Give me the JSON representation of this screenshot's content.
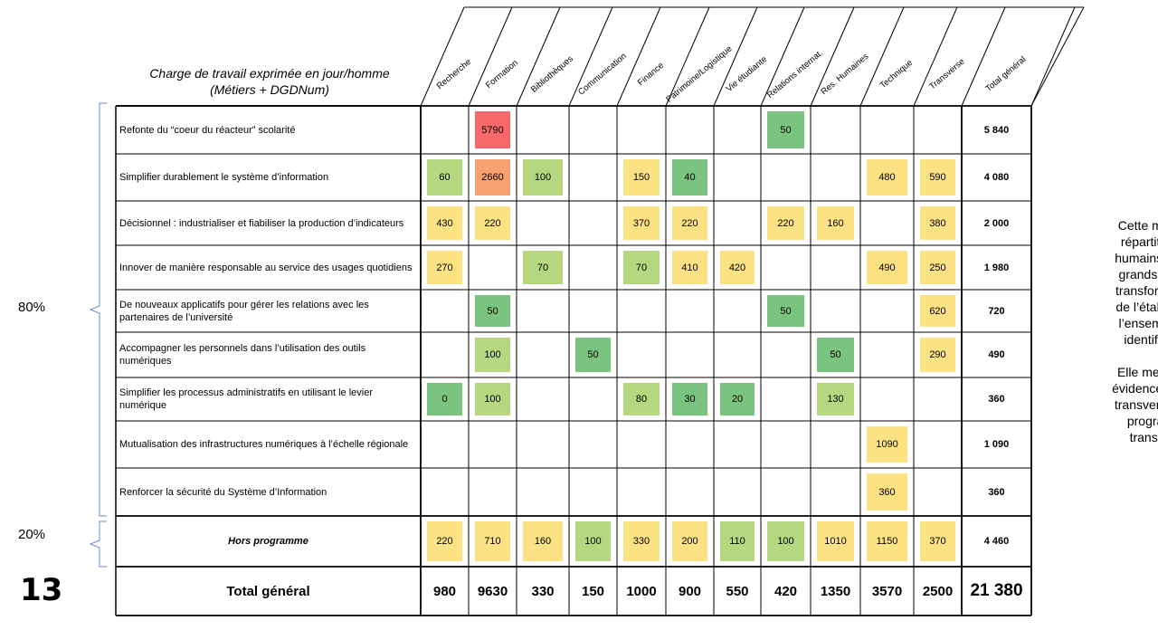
{
  "caption": {
    "line1": "Charge de travail exprimée en jour/homme",
    "line2": "(Métiers + DGDNum)"
  },
  "columns": [
    "Recherche",
    "Formation",
    "Bibliothèques",
    "Communication",
    "Finance",
    "Patrimoine/Logistique",
    "Vie étudiante",
    "Relations internat.",
    "Res. Humaines",
    "Technique",
    "Transverse",
    "Total général"
  ],
  "rows": [
    {
      "label": "Refonte du “coeur du réacteur” scolarité",
      "cells": [
        "",
        "5790",
        "",
        "",
        "",
        "",
        "",
        "50",
        "",
        "",
        ""
      ],
      "total": "5 840"
    },
    {
      "label": "Simplifier durablement le système d’information",
      "cells": [
        "60",
        "2660",
        "100",
        "",
        "150",
        "40",
        "",
        "",
        "",
        "480",
        "590"
      ],
      "total": "4 080"
    },
    {
      "label": "Décisionnel : industrialiser et fiabiliser la production d’indicateurs",
      "cells": [
        "430",
        "220",
        "",
        "",
        "370",
        "220",
        "",
        "220",
        "160",
        "",
        "380"
      ],
      "total": "2 000"
    },
    {
      "label": "Innover de manière responsable au service des usages quotidiens",
      "cells": [
        "270",
        "",
        "70",
        "",
        "70",
        "410",
        "420",
        "",
        "",
        "490",
        "250"
      ],
      "total": "1 980"
    },
    {
      "label": "De nouveaux applicatifs pour gérer les relations avec les partenaires de l’université",
      "cells": [
        "",
        "50",
        "",
        "",
        "",
        "",
        "",
        "50",
        "",
        "",
        "620"
      ],
      "total": "720"
    },
    {
      "label": "Accompagner les personnels dans l’utilisation des outils numériques",
      "cells": [
        "",
        "100",
        "",
        "50",
        "",
        "",
        "",
        "",
        "50",
        "",
        "290"
      ],
      "total": "490"
    },
    {
      "label": "Simplifier les processus administratifs en utilisant le levier numérique",
      "cells": [
        "0",
        "100",
        "",
        "",
        "80",
        "30",
        "20",
        "",
        "130",
        "",
        ""
      ],
      "total": "360"
    },
    {
      "label": "Mutualisation des infrastructures numériques à l’échelle régionale",
      "cells": [
        "",
        "",
        "",
        "",
        "",
        "",
        "",
        "",
        "",
        "1090",
        ""
      ],
      "total": "1 090"
    },
    {
      "label": "Renforcer la sécurité du Système d’Information",
      "cells": [
        "",
        "",
        "",
        "",
        "",
        "",
        "",
        "",
        "",
        "360",
        ""
      ],
      "total": "360"
    },
    {
      "label": "Hors programme",
      "cells": [
        "220",
        "710",
        "160",
        "100",
        "330",
        "200",
        "110",
        "100",
        "1010",
        "1150",
        "370"
      ],
      "total": "4 460"
    }
  ],
  "footer": {
    "label": "Total général",
    "values": [
      "980",
      "9630",
      "330",
      "150",
      "1000",
      "900",
      "550",
      "420",
      "1350",
      "3570",
      "2500"
    ],
    "grand_total": "21 380"
  },
  "percent_labels": {
    "upper": "80%",
    "lower": "20%"
  },
  "page_number": "13",
  "side_text": {
    "p1": [
      "Cette matri",
      "répartition",
      "humains à c",
      "grands pro",
      "transformati",
      "de l’établiss",
      "l’ensemble",
      "identifiés"
    ],
    "p2": [
      "Elle met no",
      "évidence le c",
      "transverse c",
      "progran",
      "transfo"
    ]
  },
  "colors": {
    "red": "#f8696b",
    "orange": "#f9a06f",
    "yellow": "#fde283",
    "lightgreen": "#b5d77f",
    "green": "#7bc47f",
    "border": "#000000",
    "bracket": "#6b8ed6"
  }
}
